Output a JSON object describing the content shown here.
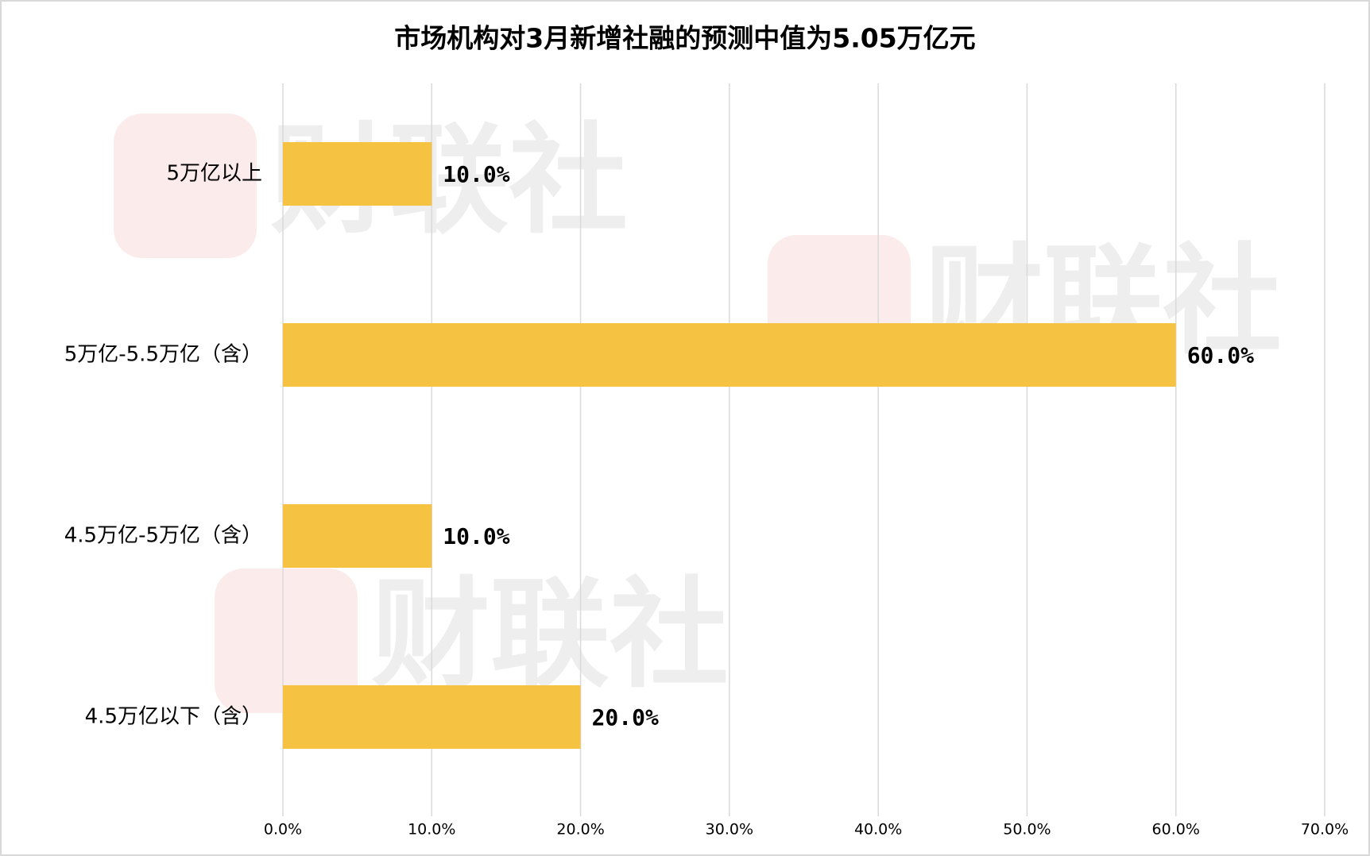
{
  "chart_data": {
    "type": "bar",
    "orientation": "horizontal",
    "title": "市场机构对3月新增社融的预测中值为5.05万亿元",
    "categories": [
      "5万亿以上",
      "5万亿-5.5万亿（含）",
      "4.5万亿-5万亿（含）",
      "4.5万亿以下（含）"
    ],
    "values": [
      10,
      60,
      10,
      20
    ],
    "value_labels": [
      "10.0%",
      "60.0%",
      "10.0%",
      "20.0%"
    ],
    "color": "#f5c242",
    "xlim": [
      0,
      70
    ],
    "xticks": [
      {
        "value": 0,
        "label": "0.0%"
      },
      {
        "value": 10,
        "label": "10.0%"
      },
      {
        "value": 20,
        "label": "20.0%"
      },
      {
        "value": 30,
        "label": "30.0%"
      },
      {
        "value": 40,
        "label": "40.0%"
      },
      {
        "value": 50,
        "label": "50.0%"
      },
      {
        "value": 60,
        "label": "60.0%"
      },
      {
        "value": 70,
        "label": "70.0%"
      }
    ],
    "grid": true
  },
  "watermark": "财联社"
}
